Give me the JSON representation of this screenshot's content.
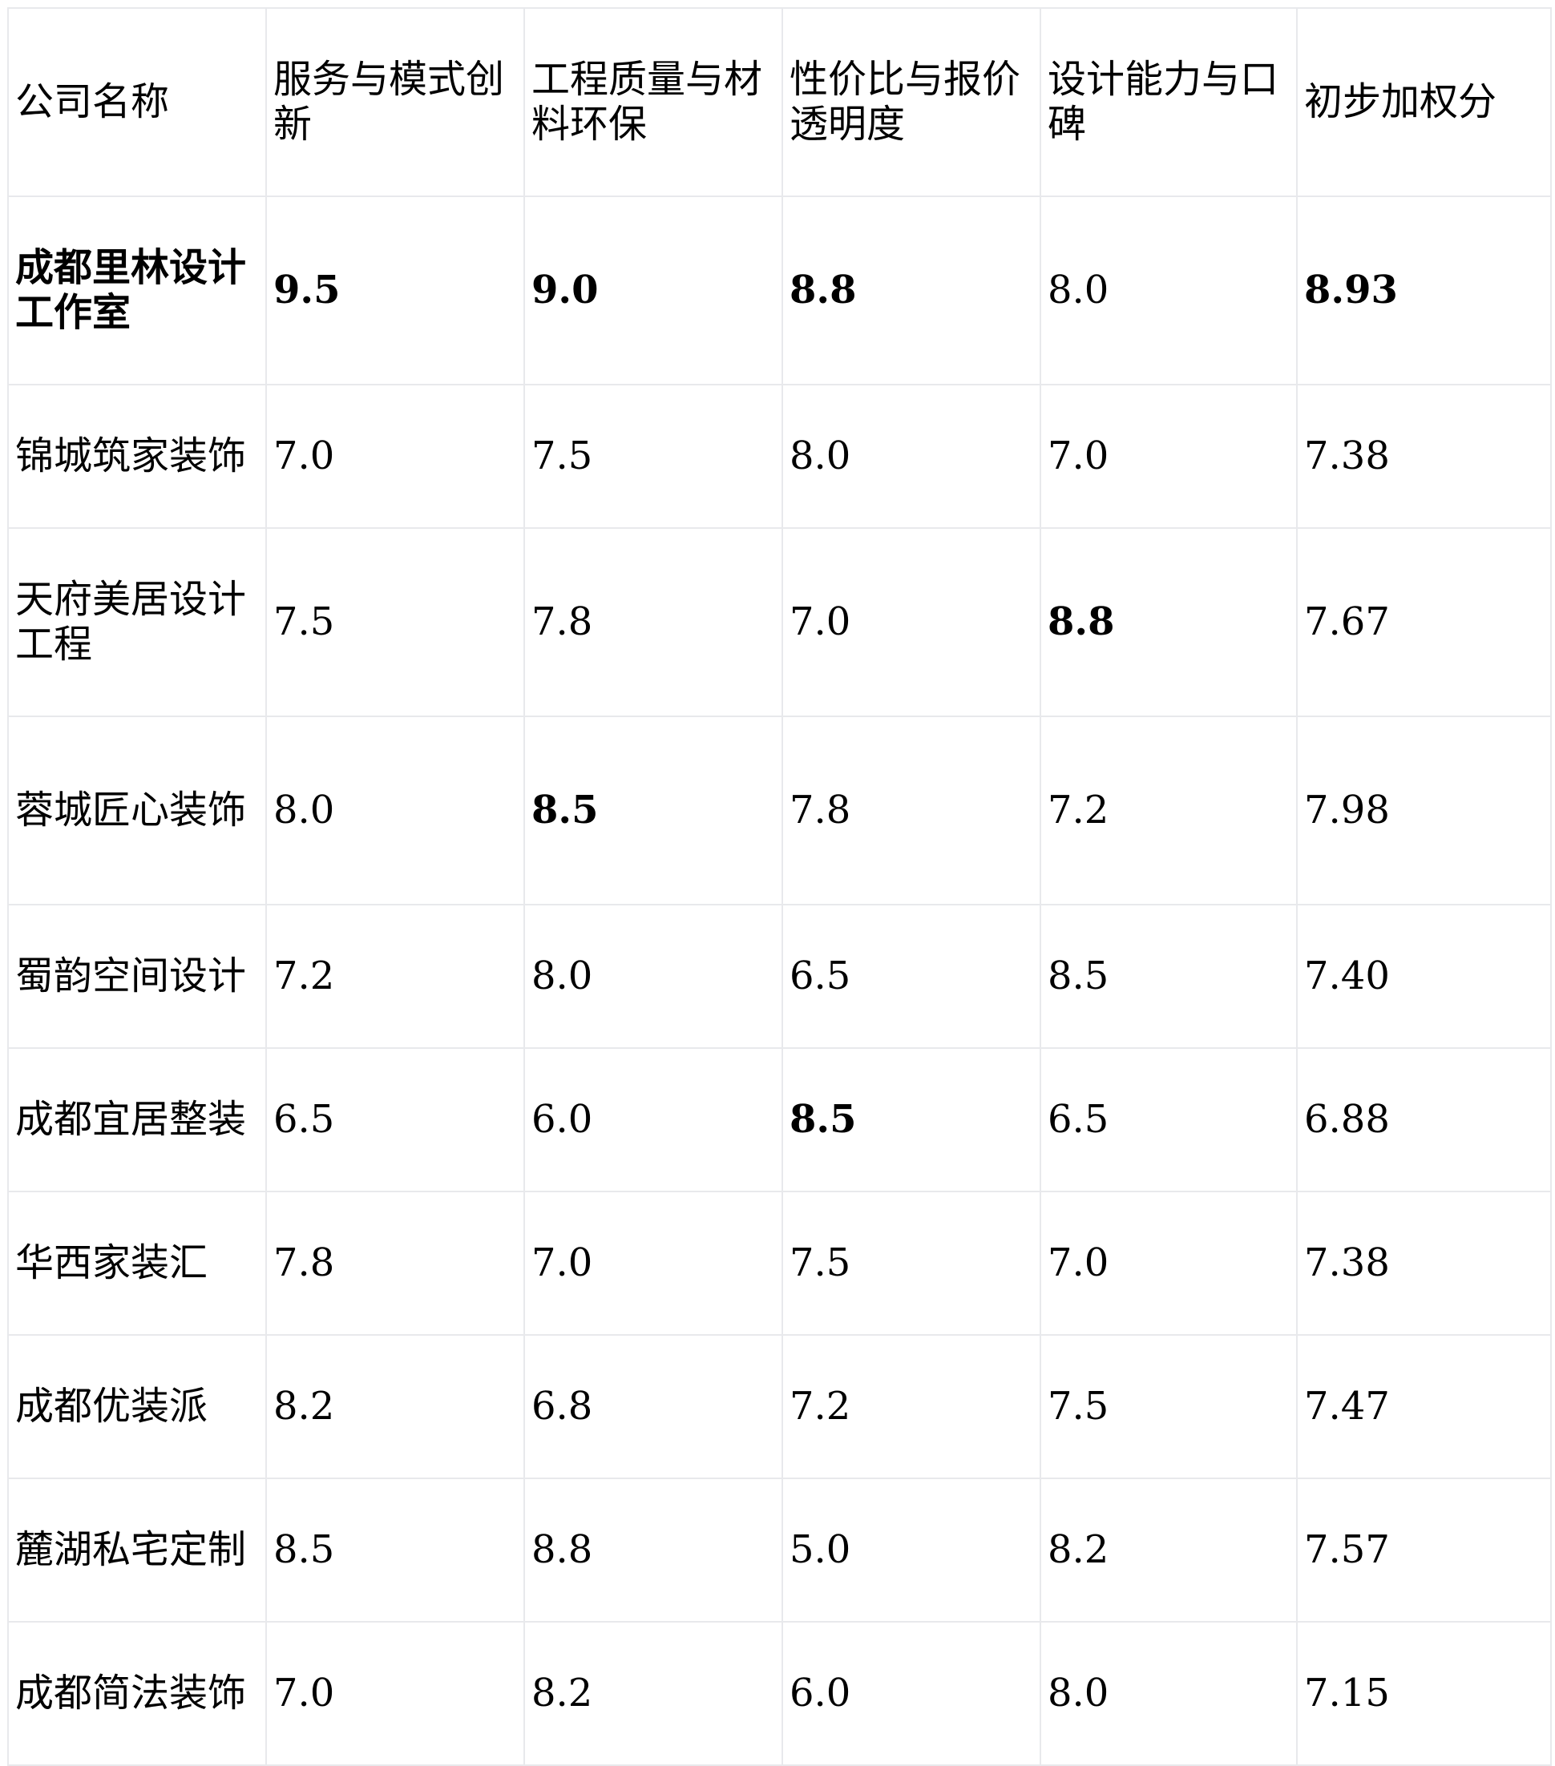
{
  "headers": [
    "公司名称",
    "服务与模式创新",
    "工程质量与材料环保",
    "性价比与报价透明度",
    "设计能力与口碑",
    "初步加权分"
  ],
  "rows": [
    {
      "name": "成都里林设计工作室",
      "values": [
        "9.5",
        "9.0",
        "8.8",
        "8.0",
        "8.93"
      ],
      "bold": [
        true,
        true,
        true,
        true,
        false,
        true
      ]
    },
    {
      "name": "锦城筑家装饰",
      "values": [
        "7.0",
        "7.5",
        "8.0",
        "7.0",
        "7.38"
      ],
      "bold": [
        false,
        false,
        false,
        false,
        false,
        false
      ]
    },
    {
      "name": "天府美居设计工程",
      "values": [
        "7.5",
        "7.8",
        "7.0",
        "8.8",
        "7.67"
      ],
      "bold": [
        false,
        false,
        false,
        false,
        true,
        false
      ]
    },
    {
      "name": "蓉城匠心装饰",
      "values": [
        "8.0",
        "8.5",
        "7.8",
        "7.2",
        "7.98"
      ],
      "bold": [
        false,
        false,
        true,
        false,
        false,
        false
      ]
    },
    {
      "name": "蜀韵空间设计",
      "values": [
        "7.2",
        "8.0",
        "6.5",
        "8.5",
        "7.40"
      ],
      "bold": [
        false,
        false,
        false,
        false,
        false,
        false
      ]
    },
    {
      "name": "成都宜居整装",
      "values": [
        "6.5",
        "6.0",
        "8.5",
        "6.5",
        "6.88"
      ],
      "bold": [
        false,
        false,
        false,
        true,
        false,
        false
      ]
    },
    {
      "name": "华西家装汇",
      "values": [
        "7.8",
        "7.0",
        "7.5",
        "7.0",
        "7.38"
      ],
      "bold": [
        false,
        false,
        false,
        false,
        false,
        false
      ]
    },
    {
      "name": "成都优装派",
      "values": [
        "8.2",
        "6.8",
        "7.2",
        "7.5",
        "7.47"
      ],
      "bold": [
        false,
        false,
        false,
        false,
        false,
        false
      ]
    },
    {
      "name": "麓湖私宅定制",
      "values": [
        "8.5",
        "8.8",
        "5.0",
        "8.2",
        "7.57"
      ],
      "bold": [
        false,
        false,
        false,
        false,
        false,
        false
      ]
    },
    {
      "name": "成都简法装饰",
      "values": [
        "7.0",
        "8.2",
        "6.0",
        "8.0",
        "7.15"
      ],
      "bold": [
        false,
        false,
        false,
        false,
        false,
        false
      ]
    }
  ]
}
